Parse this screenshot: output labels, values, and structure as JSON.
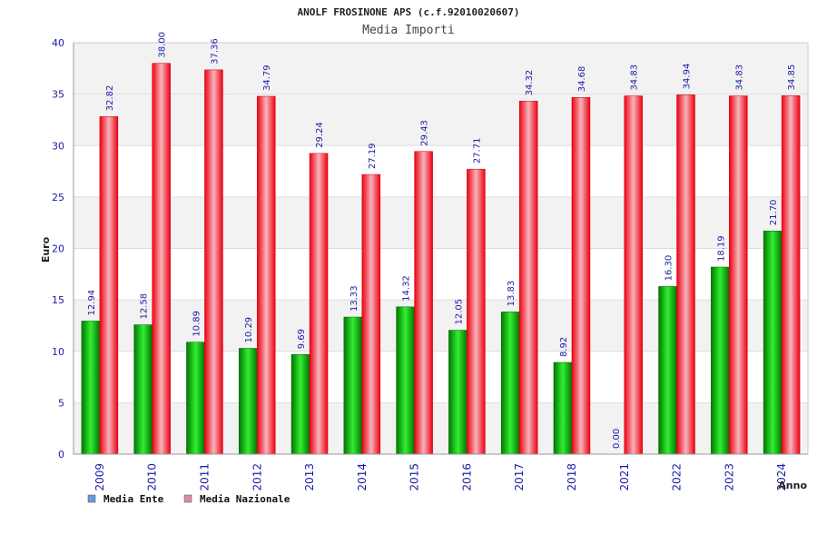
{
  "chart_data": {
    "type": "bar",
    "title": "ANOLF FROSINONE APS (c.f.92010020607)",
    "subtitle": "Media Importi",
    "xlabel": "Anno",
    "ylabel": "Euro",
    "ylim": [
      0,
      40
    ],
    "ytick_step": 5,
    "grid": true,
    "legend_position": "bottom-left",
    "categories": [
      "2009",
      "2010",
      "2011",
      "2012",
      "2013",
      "2014",
      "2015",
      "2016",
      "2017",
      "2018",
      "2021",
      "2022",
      "2023",
      "2024"
    ],
    "series": [
      {
        "name": "Media Ente",
        "color": "#00bb00",
        "legend_color": "#6699dd",
        "values": [
          12.94,
          12.58,
          10.89,
          10.29,
          9.69,
          13.33,
          14.32,
          12.05,
          13.83,
          8.92,
          0.0,
          16.3,
          18.19,
          21.7
        ],
        "labels": [
          "12.94",
          "12.58",
          "10.89",
          "10.29",
          "9.69",
          "13.33",
          "14.32",
          "12.05",
          "13.83",
          "8.92",
          "0.00",
          "16.30",
          "18.19",
          "21.70"
        ]
      },
      {
        "name": "Media Nazionale",
        "color": "#ee1122",
        "legend_color": "#dd88aa",
        "values": [
          32.82,
          38.0,
          37.36,
          34.79,
          29.24,
          27.19,
          29.43,
          27.71,
          34.32,
          34.68,
          34.83,
          34.94,
          34.83,
          34.85
        ],
        "labels": [
          "32.82",
          "38.00",
          "37.36",
          "34.79",
          "29.24",
          "27.19",
          "29.43",
          "27.71",
          "34.32",
          "34.68",
          "34.83",
          "34.94",
          "34.83",
          "34.85"
        ]
      }
    ]
  }
}
